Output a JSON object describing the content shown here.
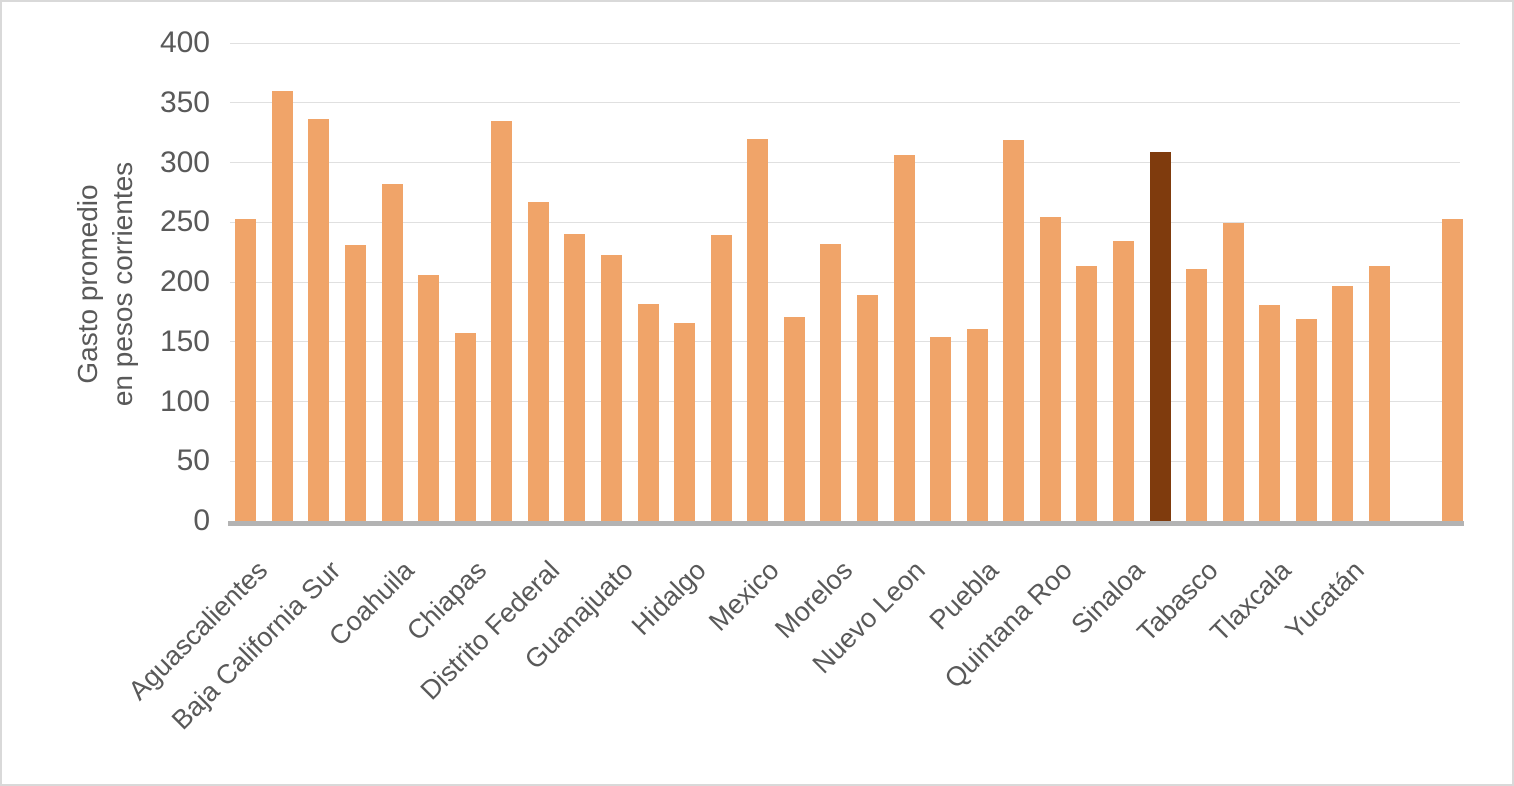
{
  "figure": {
    "background": "#FFFFFF",
    "border_color": "#D9D9D9"
  },
  "y_axis": {
    "title_line1": "Gasto promedio",
    "title_line2": "en pesos corrientes"
  },
  "chart_data": {
    "type": "bar",
    "title": "",
    "xlabel": "",
    "ylabel": "Gasto promedio en pesos corrientes",
    "ylim": [
      0,
      400
    ],
    "yticks": [
      0,
      50,
      100,
      150,
      200,
      250,
      300,
      350,
      400
    ],
    "grid": true,
    "legend": false,
    "x_tick_rotation_deg": 45,
    "labeling_note": "only alternate bars carry state-name tick labels; one slot near the right end is empty",
    "colors": {
      "bar": "#F0A469",
      "highlight": "#7F3B0D",
      "axis_text": "#595959",
      "gridline": "#E0E0E0",
      "axis_line": "#B3B3B3"
    },
    "bars": [
      {
        "label": "Aguascalientes",
        "value": 253,
        "highlight": false
      },
      {
        "label": "",
        "value": 360,
        "highlight": false
      },
      {
        "label": "Baja California Sur",
        "value": 336,
        "highlight": false
      },
      {
        "label": "",
        "value": 231,
        "highlight": false
      },
      {
        "label": "Coahuila",
        "value": 282,
        "highlight": false
      },
      {
        "label": "",
        "value": 206,
        "highlight": false
      },
      {
        "label": "Chiapas",
        "value": 157,
        "highlight": false
      },
      {
        "label": "",
        "value": 335,
        "highlight": false
      },
      {
        "label": "Distrito Federal",
        "value": 267,
        "highlight": false
      },
      {
        "label": "",
        "value": 240,
        "highlight": false
      },
      {
        "label": "Guanajuato",
        "value": 223,
        "highlight": false
      },
      {
        "label": "",
        "value": 182,
        "highlight": false
      },
      {
        "label": "Hidalgo",
        "value": 166,
        "highlight": false
      },
      {
        "label": "",
        "value": 239,
        "highlight": false
      },
      {
        "label": "Mexico",
        "value": 320,
        "highlight": false
      },
      {
        "label": "",
        "value": 171,
        "highlight": false
      },
      {
        "label": "Morelos",
        "value": 232,
        "highlight": false
      },
      {
        "label": "",
        "value": 189,
        "highlight": false
      },
      {
        "label": "Nuevo Leon",
        "value": 306,
        "highlight": false
      },
      {
        "label": "",
        "value": 154,
        "highlight": false
      },
      {
        "label": "Puebla",
        "value": 161,
        "highlight": false
      },
      {
        "label": "",
        "value": 319,
        "highlight": false
      },
      {
        "label": "Quintana Roo",
        "value": 254,
        "highlight": false
      },
      {
        "label": "",
        "value": 213,
        "highlight": false
      },
      {
        "label": "Sinaloa",
        "value": 234,
        "highlight": false
      },
      {
        "label": "",
        "value": 309,
        "highlight": true
      },
      {
        "label": "Tabasco",
        "value": 211,
        "highlight": false
      },
      {
        "label": "",
        "value": 249,
        "highlight": false
      },
      {
        "label": "Tlaxcala",
        "value": 181,
        "highlight": false
      },
      {
        "label": "",
        "value": 169,
        "highlight": false
      },
      {
        "label": "Yucatán",
        "value": 197,
        "highlight": false
      },
      {
        "label": "",
        "value": 213,
        "highlight": false
      },
      {
        "label": "",
        "value": null,
        "highlight": false
      },
      {
        "label": "",
        "value": 253,
        "highlight": false
      }
    ]
  }
}
